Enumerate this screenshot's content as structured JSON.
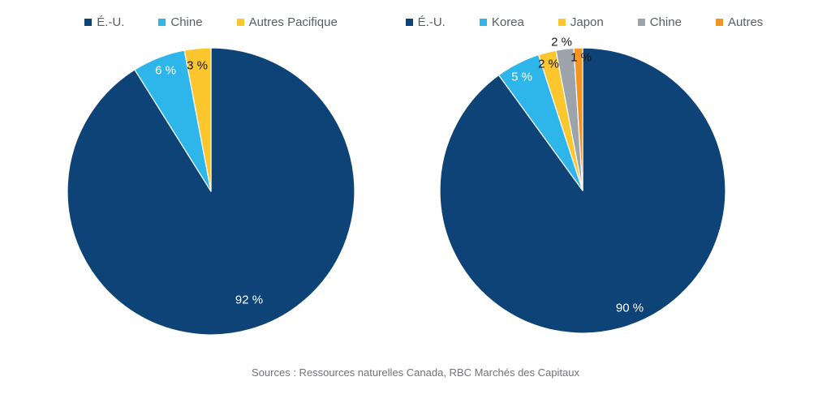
{
  "page": {
    "background": "#ffffff"
  },
  "source_note": "Sources : Ressources naturelles Canada, RBC Marchés des Capitaux",
  "chart_data": [
    {
      "type": "pie",
      "title": "",
      "legend_position": "top",
      "start_angle_deg": 0,
      "direction": "clockwise",
      "categories": [
        "É.-U.",
        "Chine",
        "Autres Pacifique"
      ],
      "values": [
        92,
        6,
        3
      ],
      "value_labels": [
        "92 %",
        "6 %",
        "3 %"
      ],
      "colors": [
        "#0d4377",
        "#2eb6ea",
        "#fcc62f"
      ],
      "value_label_colors": [
        "#ffffff",
        "#ffffff",
        "#161616"
      ],
      "value_label_outside": [
        false,
        false,
        false
      ]
    },
    {
      "type": "pie",
      "title": "",
      "legend_position": "top",
      "start_angle_deg": 0,
      "direction": "clockwise",
      "categories": [
        "É.-U.",
        "Korea",
        "Japon",
        "Chine",
        "Autres"
      ],
      "values": [
        90,
        5,
        2,
        2,
        1
      ],
      "value_labels": [
        "90 %",
        "5 %",
        "2 %",
        "2 %",
        "1 %"
      ],
      "colors": [
        "#0d4377",
        "#2eb6ea",
        "#fcc62f",
        "#9ca3ab",
        "#f49423"
      ],
      "value_label_colors": [
        "#ffffff",
        "#ffffff",
        "#161616",
        "#161616",
        "#161616"
      ],
      "value_label_outside": [
        false,
        false,
        false,
        true,
        false
      ]
    }
  ]
}
